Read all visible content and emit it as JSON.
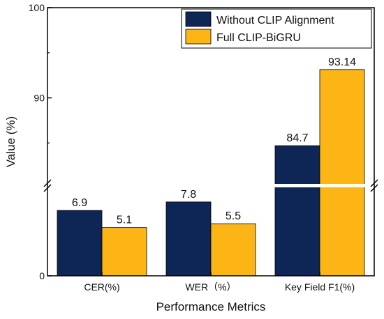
{
  "chart_data": {
    "type": "bar",
    "categories": [
      "CER(%)",
      "WER（%）",
      "Key Field F1(%)"
    ],
    "series": [
      {
        "name": "Without CLIP Alignment",
        "values": [
          6.9,
          7.8,
          84.7
        ],
        "labels": [
          "6.9",
          "7.8",
          "84.7"
        ],
        "color": "#0e2656"
      },
      {
        "name": "Full CLIP-BiGRU",
        "values": [
          5.1,
          5.5,
          93.14
        ],
        "labels": [
          "5.1",
          "5.5",
          "93.14"
        ],
        "color": "#fdb515"
      }
    ],
    "xlabel": "Performance Metrics",
    "ylabel": "Value (%)",
    "yaxis_break": true,
    "ylim_lower": [
      0,
      10
    ],
    "ylim_upper": [
      80,
      100
    ],
    "yticks": [
      "0",
      "90",
      "100"
    ],
    "legend_placement": "top-right",
    "grid": false
  }
}
